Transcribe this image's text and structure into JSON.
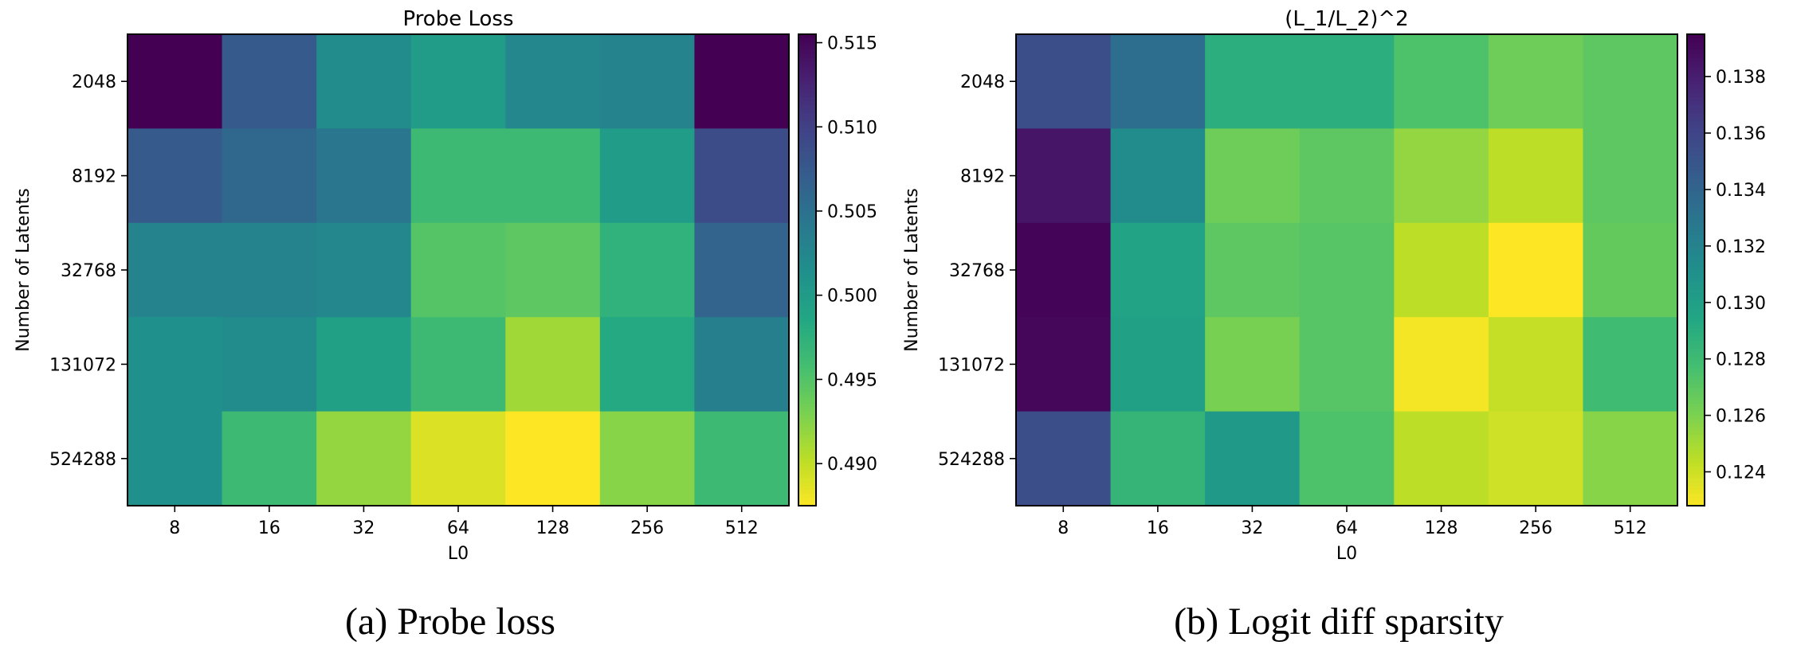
{
  "chart_data": [
    {
      "type": "heatmap",
      "title": "Probe Loss",
      "xlabel": "L0",
      "ylabel": "Number of Latents",
      "x_categories": [
        "8",
        "16",
        "32",
        "64",
        "128",
        "256",
        "512"
      ],
      "y_categories": [
        "2048",
        "8192",
        "32768",
        "131072",
        "524288"
      ],
      "colormap": "viridis_r",
      "vmin": 0.4875,
      "vmax": 0.5155,
      "colorbar_ticks": [
        0.515,
        0.51,
        0.505,
        0.5,
        0.495,
        0.49
      ],
      "colorbar_tick_labels": [
        "0.515",
        "0.510",
        "0.505",
        "0.500",
        "0.495",
        "0.490"
      ],
      "values": [
        [
          0.5155,
          0.5075,
          0.502,
          0.5,
          0.5025,
          0.503,
          0.5155
        ],
        [
          0.5075,
          0.506,
          0.5045,
          0.4965,
          0.4965,
          0.5,
          0.509
        ],
        [
          0.503,
          0.503,
          0.5025,
          0.495,
          0.4945,
          0.4975,
          0.5065
        ],
        [
          0.5015,
          0.502,
          0.4995,
          0.4965,
          0.4915,
          0.4985,
          0.5035
        ],
        [
          0.5015,
          0.4965,
          0.492,
          0.489,
          0.4875,
          0.4925,
          0.4965
        ]
      ],
      "caption": "(a) Probe loss"
    },
    {
      "type": "heatmap",
      "title": "(L_1/L_2)^2",
      "xlabel": "L0",
      "ylabel": "Number of Latents",
      "x_categories": [
        "8",
        "16",
        "32",
        "64",
        "128",
        "256",
        "512"
      ],
      "y_categories": [
        "2048",
        "8192",
        "32768",
        "131072",
        "524288"
      ],
      "colormap": "viridis_r",
      "vmin": 0.1228,
      "vmax": 0.1395,
      "colorbar_ticks": [
        0.138,
        0.136,
        0.134,
        0.132,
        0.13,
        0.128,
        0.126,
        0.124
      ],
      "colorbar_tick_labels": [
        "0.138",
        "0.136",
        "0.134",
        "0.132",
        "0.130",
        "0.128",
        "0.126",
        "0.124"
      ],
      "values": [
        [
          0.1355,
          0.1335,
          0.129,
          0.129,
          0.1275,
          0.1265,
          0.127
        ],
        [
          0.1385,
          0.1315,
          0.1265,
          0.127,
          0.1255,
          0.1245,
          0.127
        ],
        [
          0.1393,
          0.1298,
          0.127,
          0.1272,
          0.1245,
          0.1228,
          0.1268
        ],
        [
          0.1392,
          0.13,
          0.1262,
          0.1272,
          0.123,
          0.1243,
          0.128
        ],
        [
          0.1355,
          0.1285,
          0.1305,
          0.1275,
          0.1245,
          0.124,
          0.1258
        ]
      ],
      "caption": "(b) Logit diff sparsity"
    }
  ]
}
